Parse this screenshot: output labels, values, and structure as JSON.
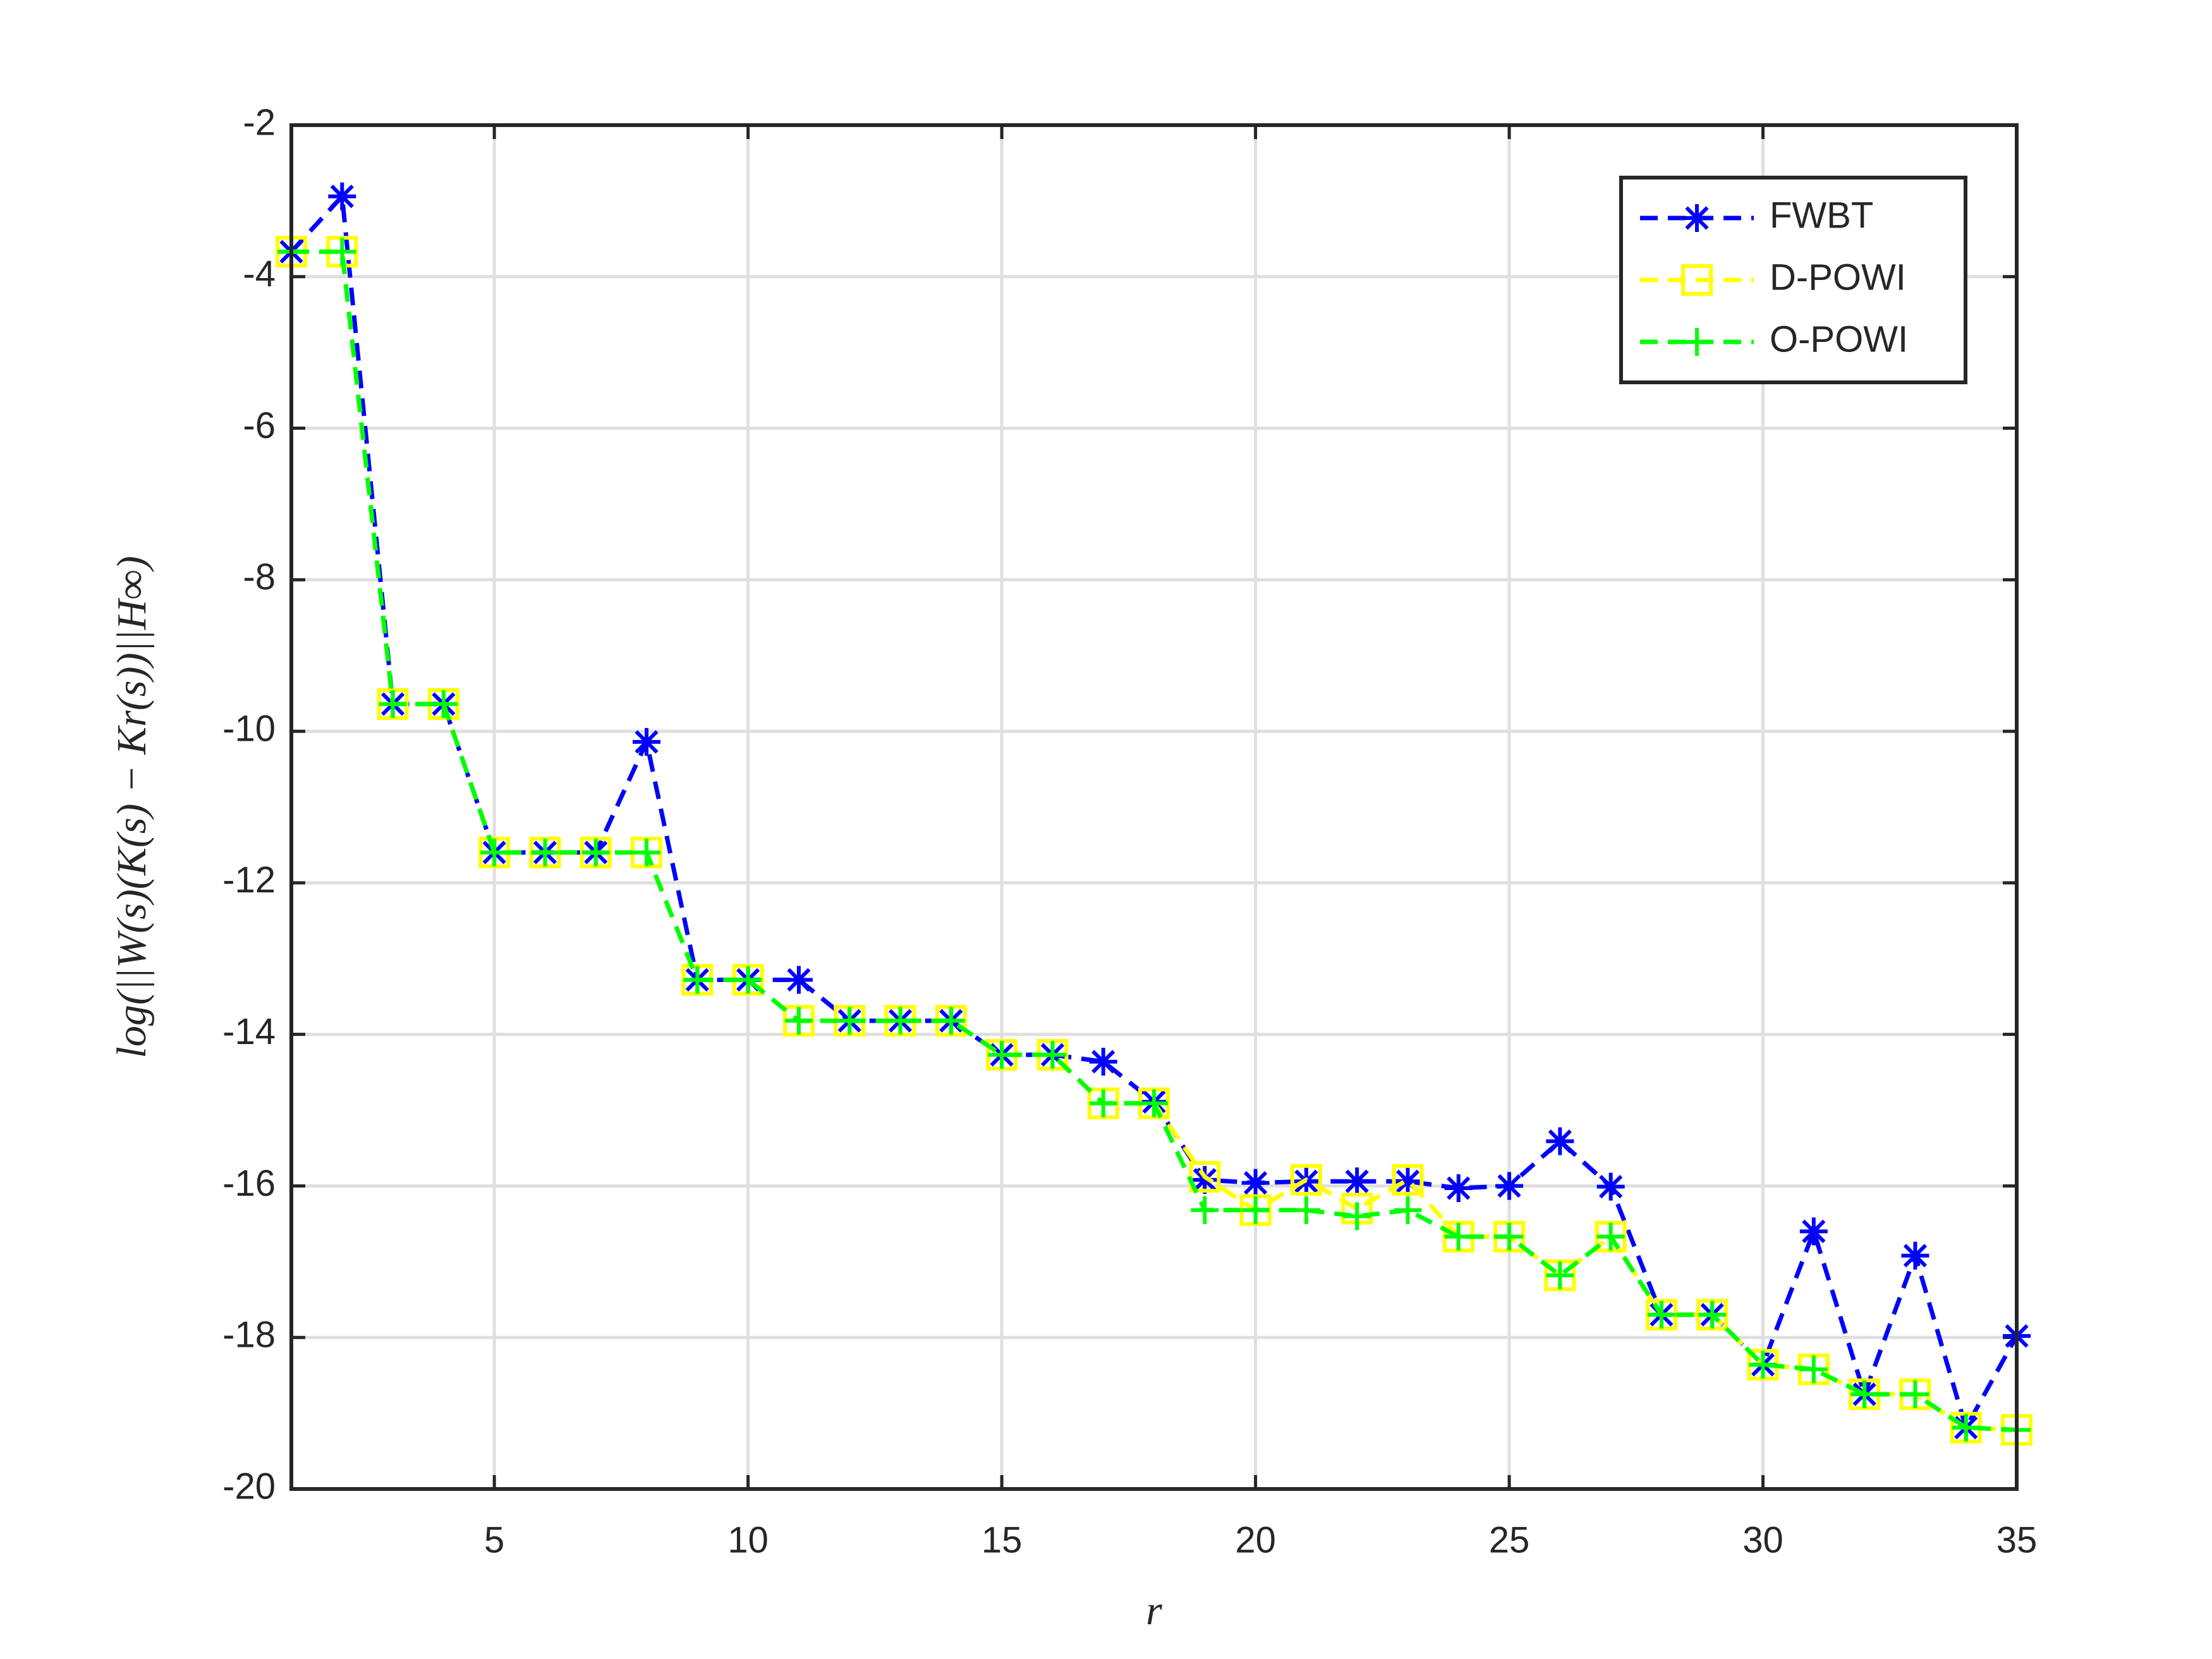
{
  "chart_data": {
    "type": "line",
    "xlabel": "r",
    "ylabel": "log(||W(s)(K(s) − Kr(s))||H∞)",
    "x": [
      1,
      2,
      3,
      4,
      5,
      6,
      7,
      8,
      9,
      10,
      11,
      12,
      13,
      14,
      15,
      16,
      17,
      18,
      19,
      20,
      21,
      22,
      23,
      24,
      25,
      26,
      27,
      28,
      29,
      30,
      31,
      32,
      33,
      34,
      35
    ],
    "series": [
      {
        "name": "FWBT",
        "color": "#0000ff",
        "marker": "star",
        "values": [
          -3.67,
          -2.94,
          -9.64,
          -9.64,
          -11.6,
          -11.6,
          -11.6,
          -10.14,
          -13.28,
          -13.28,
          -13.28,
          -13.82,
          -13.82,
          -13.82,
          -14.27,
          -14.27,
          -14.36,
          -14.89,
          -15.92,
          -15.96,
          -15.94,
          -15.94,
          -15.94,
          -16.03,
          -16.0,
          -15.41,
          -16.01,
          -17.7,
          -17.7,
          -18.36,
          -16.6,
          -18.75,
          -16.92,
          -19.19,
          -17.98
        ]
      },
      {
        "name": "D-POWI",
        "color": "#ffff00",
        "marker": "square",
        "values": [
          -3.67,
          -3.67,
          -9.64,
          -9.64,
          -11.6,
          -11.6,
          -11.6,
          -11.6,
          -13.28,
          -13.28,
          -13.82,
          -13.82,
          -13.82,
          -13.82,
          -14.27,
          -14.27,
          -14.91,
          -14.91,
          -15.88,
          -16.32,
          -15.92,
          -16.3,
          -15.92,
          -16.67,
          -16.67,
          -17.18,
          -16.67,
          -17.7,
          -17.7,
          -18.36,
          -18.42,
          -18.75,
          -18.75,
          -19.19,
          -19.22
        ]
      },
      {
        "name": "O-POWI",
        "color": "#00ff00",
        "marker": "plus",
        "values": [
          -3.67,
          -3.67,
          -9.64,
          -9.64,
          -11.6,
          -11.6,
          -11.6,
          -11.6,
          -13.28,
          -13.28,
          -13.82,
          -13.82,
          -13.82,
          -13.82,
          -14.27,
          -14.27,
          -14.91,
          -14.91,
          -16.32,
          -16.32,
          -16.32,
          -16.4,
          -16.32,
          -16.67,
          -16.67,
          -17.18,
          -16.67,
          -17.7,
          -17.7,
          -18.36,
          -18.42,
          -18.75,
          -18.75,
          -19.19,
          -19.22
        ]
      }
    ],
    "xlim": [
      1,
      35
    ],
    "xticks": [
      5,
      10,
      15,
      20,
      25,
      30,
      35
    ],
    "ylim": [
      -20,
      -2
    ],
    "yticks": [
      -20,
      -18,
      -16,
      -14,
      -12,
      -10,
      -8,
      -6,
      -4,
      -2
    ],
    "grid": true,
    "legend": "top-right"
  }
}
